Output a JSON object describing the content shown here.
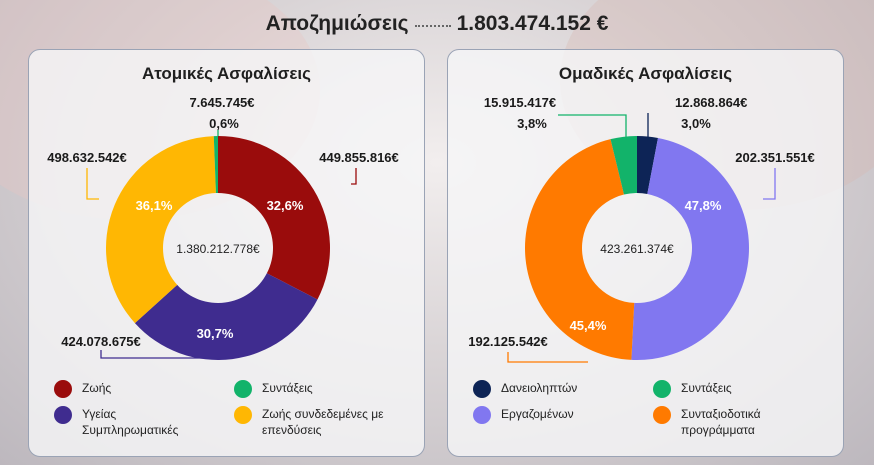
{
  "header": {
    "label": "Αποζημιώσεις",
    "value": "1.803.474.152 €"
  },
  "chart_data": [
    {
      "type": "pie",
      "title": "Ατομικές Ασφαλίσεις",
      "center_label": "1.380.212.778€",
      "series": [
        {
          "name": "Ζωής",
          "value_label": "449.855.816€",
          "percent": 32.6,
          "percent_label": "32,6%",
          "color": "#9a0c0c"
        },
        {
          "name": "Υγείας Συμπληρωματικές",
          "value_label": "424.078.675€",
          "percent": 30.7,
          "percent_label": "30,7%",
          "color": "#3f2c8f"
        },
        {
          "name": "Ζωής συνδεδεμένες με επενδύσεις",
          "value_label": "498.632.542€",
          "percent": 36.1,
          "percent_label": "36,1%",
          "color": "#ffb703"
        },
        {
          "name": "Συντάξεις",
          "value_label": "7.645.745€",
          "percent": 0.6,
          "percent_label": "0,6%",
          "color": "#12b36a"
        }
      ],
      "legend": [
        {
          "label": "Ζωής",
          "color": "#9a0c0c"
        },
        {
          "label": "Συντάξεις",
          "color": "#12b36a"
        },
        {
          "label": "Υγείας Συμπληρωματικές",
          "color": "#3f2c8f"
        },
        {
          "label": "Ζωής συνδεδεμένες με επενδύσεις",
          "color": "#ffb703"
        }
      ]
    },
    {
      "type": "pie",
      "title": "Ομαδικές Ασφαλίσεις",
      "center_label": "423.261.374€",
      "series": [
        {
          "name": "Δανειοληπτών",
          "value_label": "12.868.864€",
          "percent": 3.0,
          "percent_label": "3,0%",
          "color": "#0d2456"
        },
        {
          "name": "Εργαζομένων",
          "value_label": "202.351.551€",
          "percent": 47.8,
          "percent_label": "47,8%",
          "color": "#8177f0"
        },
        {
          "name": "Συνταξιοδοτικά προγράμματα",
          "value_label": "192.125.542€",
          "percent": 45.4,
          "percent_label": "45,4%",
          "color": "#ff7a00"
        },
        {
          "name": "Συντάξεις",
          "value_label": "15.915.417€",
          "percent": 3.8,
          "percent_label": "3,8%",
          "color": "#12b36a"
        }
      ],
      "legend": [
        {
          "label": "Δανειοληπτών",
          "color": "#0d2456"
        },
        {
          "label": "Συντάξεις",
          "color": "#12b36a"
        },
        {
          "label": "Εργαζομένων",
          "color": "#8177f0"
        },
        {
          "label": "Συνταξιοδοτικά προγράμματα",
          "color": "#ff7a00"
        }
      ]
    }
  ]
}
